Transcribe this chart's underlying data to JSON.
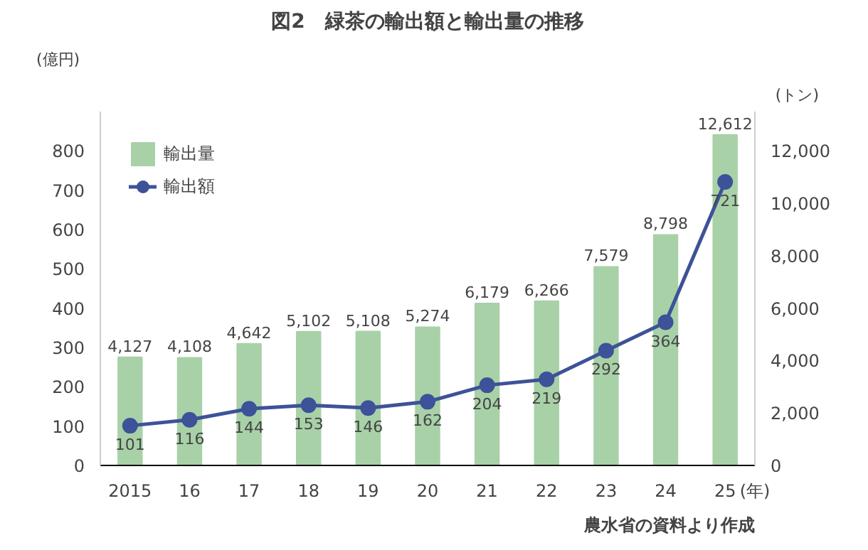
{
  "chart_data": {
    "type": "bar",
    "title": "図2　緑茶の輸出額と輸出量の推移",
    "ylabel": "(億円)",
    "y2label": "(トン)",
    "xlabel": "(年)",
    "annotations": [
      "農水省の資料より作成"
    ],
    "categories": [
      "2015",
      "16",
      "17",
      "18",
      "19",
      "20",
      "21",
      "22",
      "23",
      "24",
      "25"
    ],
    "series": [
      {
        "name": "輸出量",
        "axis": "y2",
        "color": "#a8d1a8",
        "values": [
          4127,
          4108,
          4642,
          5102,
          5108,
          5274,
          6179,
          6266,
          7579,
          8798,
          12612
        ],
        "value_labels": [
          "4,127",
          "4,108",
          "4,642",
          "5,102",
          "5,108",
          "5,274",
          "6,179",
          "6,266",
          "7,579",
          "8,798",
          "12,612"
        ]
      },
      {
        "name": "輸出額",
        "type": "line",
        "axis": "y",
        "color": "#3d5298",
        "marker": "circle",
        "values": [
          101,
          116,
          144,
          153,
          146,
          162,
          204,
          219,
          292,
          364,
          721
        ],
        "value_labels": [
          "101",
          "116",
          "144",
          "153",
          "146",
          "162",
          "204",
          "219",
          "292",
          "364",
          "721"
        ]
      }
    ],
    "ylim": [
      0,
      900
    ],
    "yticks": [
      0,
      100,
      200,
      300,
      400,
      500,
      600,
      700,
      800
    ],
    "y2lim": [
      0,
      13500
    ],
    "y2ticks": [
      0,
      {
        "value": 2000,
        "label": "2,000"
      },
      {
        "value": 4000,
        "label": "4,000"
      },
      {
        "value": 6000,
        "label": "6,000"
      },
      {
        "value": 8000,
        "label": "8,000"
      },
      {
        "value": 10000,
        "label": "10,000"
      },
      {
        "value": 12000,
        "label": "12,000"
      }
    ],
    "grid": false,
    "legend": "top left"
  }
}
